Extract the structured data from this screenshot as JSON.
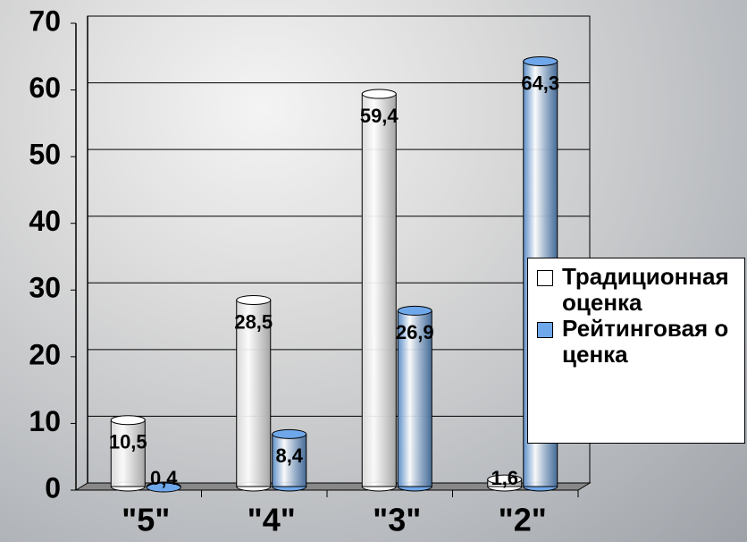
{
  "chart_data": {
    "type": "bar",
    "categories": [
      "\"5\"",
      "\"4\"",
      "\"3\"",
      "\"2\""
    ],
    "series": [
      {
        "name": "Традиционная оценка",
        "color": "#ffffff",
        "values": [
          10.5,
          28.5,
          59.4,
          1.6
        ],
        "value_labels": [
          "10,5",
          "28,5",
          "59,4",
          "1,6"
        ]
      },
      {
        "name": "Рейтинговая оценка",
        "color": "#6fa8ea",
        "values": [
          0.4,
          8.4,
          26.9,
          64.3
        ],
        "value_labels": [
          "0,4",
          "8,4",
          "26,9",
          "64,3"
        ]
      }
    ],
    "ylim": [
      0,
      70
    ],
    "yticks": [
      0,
      10,
      20,
      30,
      40,
      50,
      60,
      70
    ],
    "grid": true,
    "legend": "right"
  }
}
